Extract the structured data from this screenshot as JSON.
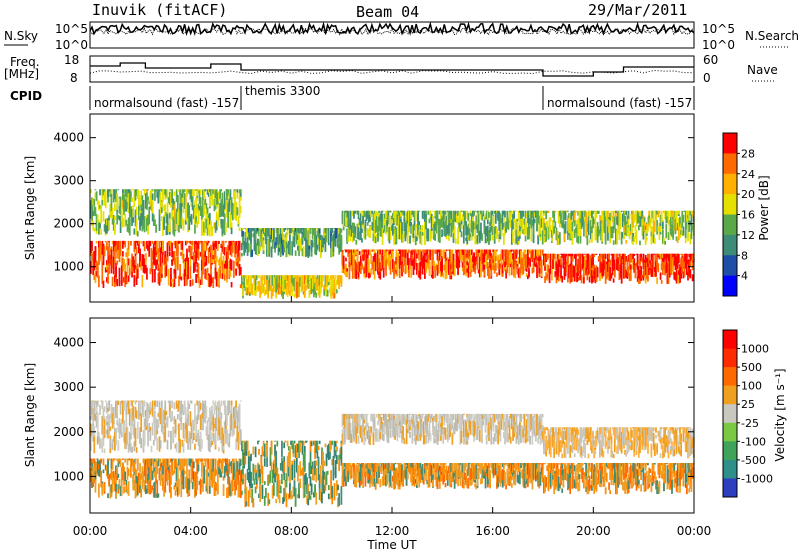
{
  "header": {
    "station": "Inuvik (fitACF)",
    "beam": "Beam 04",
    "date": "29/Mar/2011"
  },
  "top_panels": {
    "nsky_label": "N.Sky",
    "nsky_ticks": [
      "10^5",
      "10^0"
    ],
    "nsearch_label": "N.Search",
    "nsearch_ticks": [
      "10^5",
      "10^0"
    ],
    "freq_label_line1": "Freq.",
    "freq_label_line2": "[MHz]",
    "freq_ticks": [
      "18",
      "8"
    ],
    "nave_label": "Nave",
    "nave_ticks": [
      "60",
      "0"
    ],
    "cpid_label": "CPID",
    "cpid_segments": [
      {
        "text": "normalsound (fast) -157",
        "start_h": 0.0,
        "end_h": 6.0
      },
      {
        "text": "themis 3300",
        "start_h": 6.0,
        "end_h": 18.0
      },
      {
        "text": "normalsound (fast) -157",
        "start_h": 18.0,
        "end_h": 24.0
      }
    ]
  },
  "chart_data": [
    {
      "type": "heatmap",
      "panel": "power",
      "ylabel": "Slant Range [km]",
      "xlabel": "Time UT",
      "x_ticks": [
        "00:00",
        "04:00",
        "08:00",
        "12:00",
        "16:00",
        "20:00",
        "00:00"
      ],
      "xlim_hours": [
        0,
        24
      ],
      "y_ticks": [
        1000,
        2000,
        3000,
        4000
      ],
      "ylim": [
        180,
        4550
      ],
      "colorbar": {
        "label": "Power [dB]",
        "ticks": [
          "28",
          "24",
          "20",
          "16",
          "12",
          "8",
          "4"
        ],
        "range": [
          0,
          30
        ],
        "colors": [
          "#0000ff",
          "#1f4ea8",
          "#3c8c78",
          "#5aa84a",
          "#e6e000",
          "#ffb000",
          "#ff6a00",
          "#ff0000"
        ]
      },
      "bands": [
        {
          "start_h": 0.0,
          "end_h": 6.0,
          "lo_km": 500,
          "hi_km": 1600,
          "value": 26
        },
        {
          "start_h": 0.0,
          "end_h": 6.0,
          "lo_km": 1700,
          "hi_km": 2800,
          "value": 14
        },
        {
          "start_h": 6.0,
          "end_h": 10.0,
          "lo_km": 250,
          "hi_km": 800,
          "value": 18
        },
        {
          "start_h": 6.0,
          "end_h": 10.0,
          "lo_km": 1200,
          "hi_km": 1900,
          "value": 12
        },
        {
          "start_h": 10.0,
          "end_h": 18.0,
          "lo_km": 700,
          "hi_km": 1400,
          "value": 25
        },
        {
          "start_h": 10.0,
          "end_h": 18.0,
          "lo_km": 1500,
          "hi_km": 2300,
          "value": 13
        },
        {
          "start_h": 18.0,
          "end_h": 24.0,
          "lo_km": 600,
          "hi_km": 1300,
          "value": 27
        },
        {
          "start_h": 18.0,
          "end_h": 24.0,
          "lo_km": 1500,
          "hi_km": 2300,
          "value": 15
        }
      ]
    },
    {
      "type": "heatmap",
      "panel": "velocity",
      "ylabel": "Slant Range [km]",
      "xlabel": "Time UT",
      "x_ticks": [
        "00:00",
        "04:00",
        "08:00",
        "12:00",
        "16:00",
        "20:00",
        "00:00"
      ],
      "xlim_hours": [
        0,
        24
      ],
      "y_ticks": [
        1000,
        2000,
        3000,
        4000
      ],
      "ylim": [
        180,
        4550
      ],
      "colorbar": {
        "label": "Velocity [m s⁻¹]",
        "ticks": [
          "1000",
          "500",
          "100",
          "25",
          "-25",
          "-100",
          "-500",
          "-1000"
        ],
        "colors": [
          "#2b3fbf",
          "#2f8f8a",
          "#3fa35a",
          "#7ac943",
          "#c8c8c0",
          "#f0a020",
          "#ff6a00",
          "#ff2a00",
          "#ff0000"
        ]
      },
      "bands": [
        {
          "start_h": 0.0,
          "end_h": 6.0,
          "lo_km": 500,
          "hi_km": 1400,
          "value": "orange"
        },
        {
          "start_h": 0.0,
          "end_h": 6.0,
          "lo_km": 1500,
          "hi_km": 2700,
          "value": "gray"
        },
        {
          "start_h": 6.0,
          "end_h": 10.0,
          "lo_km": 300,
          "hi_km": 1800,
          "value": "green"
        },
        {
          "start_h": 10.0,
          "end_h": 18.0,
          "lo_km": 700,
          "hi_km": 1300,
          "value": "orange"
        },
        {
          "start_h": 10.0,
          "end_h": 18.0,
          "lo_km": 1700,
          "hi_km": 2400,
          "value": "gray"
        },
        {
          "start_h": 18.0,
          "end_h": 24.0,
          "lo_km": 600,
          "hi_km": 1300,
          "value": "orange"
        },
        {
          "start_h": 18.0,
          "end_h": 24.0,
          "lo_km": 1400,
          "hi_km": 2100,
          "value": "orange-light"
        }
      ]
    }
  ]
}
